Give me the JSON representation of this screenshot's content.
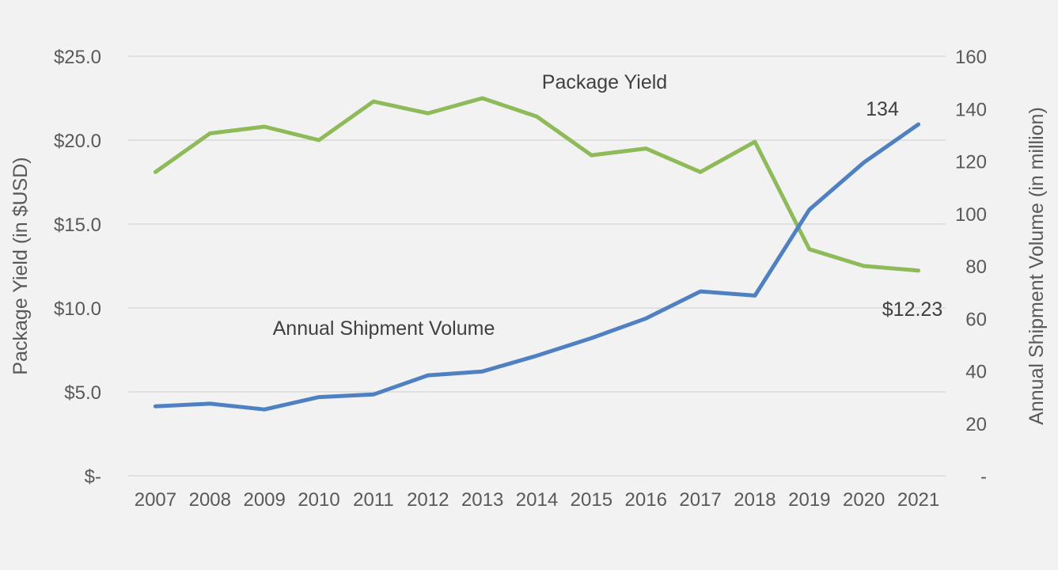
{
  "colors": {
    "background": "#f2f2f2",
    "grid": "#d9d9d9",
    "package_yield": "#8fba5a",
    "shipment_volume": "#4f81c2",
    "text": "#595959"
  },
  "chart_data": {
    "type": "line",
    "grid": true,
    "legend": "none (series labeled inline)",
    "categories": [
      "2007",
      "2008",
      "2009",
      "2010",
      "2011",
      "2012",
      "2013",
      "2014",
      "2015",
      "2016",
      "2017",
      "2018",
      "2019",
      "2020",
      "2021"
    ],
    "y_left": {
      "label": "Package Yield (in $USD)",
      "range": [
        0,
        25
      ],
      "ticks": [
        0,
        5,
        10,
        15,
        20,
        25
      ],
      "tick_labels": [
        "$-",
        "$5.0",
        "$10.0",
        "$15.0",
        "$20.0",
        "$25.0"
      ]
    },
    "y_right": {
      "label": "Annual Shipment Volume (in million)",
      "range": [
        0,
        160
      ],
      "ticks": [
        0,
        20,
        40,
        60,
        80,
        100,
        120,
        140,
        160
      ],
      "tick_labels": [
        "-",
        "20",
        "40",
        "60",
        "80",
        "100",
        "120",
        "140",
        "160"
      ]
    },
    "series": [
      {
        "name": "Package Yield",
        "axis": "left",
        "color": "#8fba5a",
        "values": [
          18.1,
          20.4,
          20.8,
          20.0,
          22.3,
          21.6,
          22.5,
          21.4,
          19.1,
          19.5,
          18.1,
          19.9,
          13.5,
          12.5,
          12.23
        ],
        "end_label": "$12.23"
      },
      {
        "name": "Annual Shipment Volume",
        "axis": "right",
        "color": "#4f81c2",
        "values": [
          26.5,
          27.5,
          25.3,
          30.0,
          31.0,
          38.3,
          39.8,
          45.8,
          52.5,
          60.0,
          70.3,
          68.7,
          101.5,
          119.5,
          134
        ],
        "end_label": "134"
      }
    ]
  }
}
